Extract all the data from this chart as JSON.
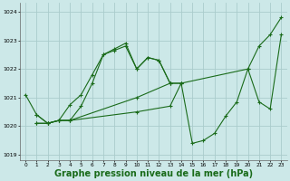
{
  "background_color": "#cce8e8",
  "grid_color": "#aacccc",
  "line_color": "#1a6b1a",
  "marker": "+",
  "xlabel": "Graphe pression niveau de la mer (hPa)",
  "xlabel_fontsize": 7.0,
  "ylim": [
    1018.8,
    1024.3
  ],
  "xlim": [
    -0.5,
    23.5
  ],
  "yticks": [
    1019,
    1020,
    1021,
    1022,
    1023,
    1024
  ],
  "xticks": [
    0,
    1,
    2,
    3,
    4,
    5,
    6,
    7,
    8,
    9,
    10,
    11,
    12,
    13,
    14,
    15,
    16,
    17,
    18,
    19,
    20,
    21,
    22,
    23
  ],
  "lines": [
    {
      "x": [
        0,
        1,
        2,
        3,
        4,
        5,
        6,
        7,
        8,
        9,
        10,
        11,
        12,
        13
      ],
      "y": [
        1021.1,
        1020.4,
        1020.1,
        1020.2,
        1020.75,
        1021.1,
        1021.8,
        1022.5,
        1022.65,
        1022.8,
        1022.0,
        1022.4,
        1022.3,
        1021.5
      ]
    },
    {
      "x": [
        1,
        2,
        3,
        4,
        5,
        6,
        7,
        8,
        9,
        10,
        11,
        12,
        13,
        14
      ],
      "y": [
        1020.4,
        1020.1,
        1020.2,
        1020.2,
        1020.7,
        1021.5,
        1022.5,
        1022.7,
        1022.9,
        1022.0,
        1022.4,
        1022.3,
        1021.5,
        1021.5
      ]
    },
    {
      "x": [
        1,
        2,
        3,
        4,
        10,
        13,
        14,
        20,
        21,
        22,
        23
      ],
      "y": [
        1020.1,
        1020.1,
        1020.2,
        1020.2,
        1021.0,
        1021.5,
        1021.5,
        1022.0,
        1022.8,
        1023.2,
        1023.8
      ]
    },
    {
      "x": [
        1,
        2,
        3,
        4,
        10,
        13,
        14,
        15,
        16,
        17,
        18,
        19,
        20,
        21,
        22,
        23
      ],
      "y": [
        1020.1,
        1020.1,
        1020.2,
        1020.2,
        1020.5,
        1020.7,
        1021.5,
        1019.4,
        1019.5,
        1019.75,
        1020.35,
        1020.85,
        1022.0,
        1020.85,
        1020.6,
        1023.2
      ]
    }
  ]
}
